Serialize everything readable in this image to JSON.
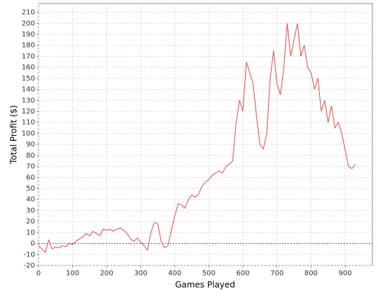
{
  "chart_data": {
    "type": "line",
    "x_label": "Games Played",
    "y_label": "Total Profit ($)",
    "x": [
      0,
      10,
      20,
      30,
      40,
      50,
      60,
      70,
      80,
      90,
      100,
      110,
      120,
      130,
      140,
      150,
      160,
      170,
      180,
      190,
      200,
      210,
      220,
      230,
      240,
      250,
      260,
      270,
      280,
      290,
      300,
      310,
      320,
      330,
      340,
      350,
      360,
      370,
      380,
      390,
      400,
      410,
      420,
      430,
      440,
      450,
      460,
      470,
      480,
      490,
      500,
      510,
      520,
      530,
      540,
      550,
      560,
      570,
      580,
      590,
      600,
      610,
      620,
      630,
      640,
      650,
      660,
      670,
      680,
      690,
      700,
      710,
      720,
      730,
      740,
      750,
      760,
      770,
      780,
      790,
      800,
      810,
      820,
      830,
      840,
      850,
      860,
      870,
      880,
      890,
      900,
      910,
      920,
      930
    ],
    "series": [
      {
        "name": "Total Profit",
        "color": "#e04848",
        "values": [
          -2,
          -5,
          -8,
          3,
          -5,
          -3,
          -4,
          -2,
          -3,
          0,
          -1,
          2,
          4,
          6,
          9,
          7,
          11,
          9,
          7,
          13,
          12,
          13,
          11,
          13,
          14,
          12,
          9,
          4,
          2,
          5,
          1,
          -2,
          -6,
          10,
          19,
          18,
          2,
          -4,
          -2,
          12,
          25,
          36,
          35,
          32,
          40,
          44,
          42,
          45,
          52,
          56,
          58,
          62,
          64,
          66,
          64,
          70,
          72,
          75,
          110,
          130,
          120,
          165,
          155,
          145,
          115,
          90,
          86,
          100,
          150,
          175,
          145,
          135,
          160,
          200,
          170,
          185,
          200,
          170,
          180,
          160,
          155,
          140,
          150,
          120,
          130,
          110,
          125,
          105,
          110,
          100,
          85,
          70,
          68,
          72
        ]
      }
    ],
    "xlim": [
      0,
      980
    ],
    "ylim": [
      -20,
      218
    ],
    "xticks": [
      0,
      100,
      200,
      300,
      400,
      500,
      600,
      700,
      800,
      900
    ],
    "yticks": [
      -20,
      -10,
      0,
      10,
      20,
      30,
      40,
      50,
      60,
      70,
      80,
      90,
      100,
      110,
      120,
      130,
      140,
      150,
      160,
      170,
      180,
      190,
      200,
      210
    ],
    "grid": true,
    "baseline": 0,
    "baseline_color": "#5050d0"
  }
}
